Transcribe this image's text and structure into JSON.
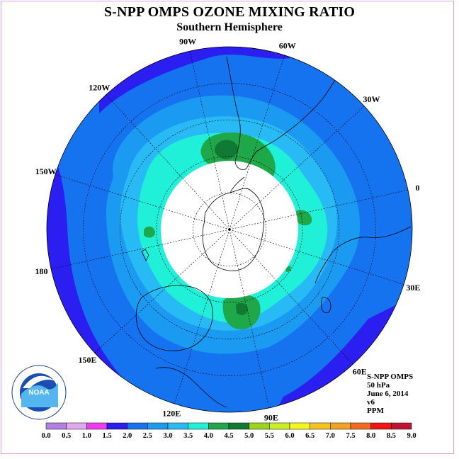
{
  "title": "S-NPP OMPS OZONE MIXING RATIO",
  "subtitle": "Southern Hemisphere",
  "logo": {
    "text": "NOAA",
    "ring_text": "NATIONAL OCEANIC AND ATMOSPHERIC ADMINISTRATION  U.S. DEPARTMENT OF COMMERCE"
  },
  "info": [
    "S-NPP OMPS",
    "50 hPa",
    "June 6, 2014",
    "v6",
    "PPM"
  ],
  "longitude_labels": [
    {
      "text": "90W",
      "deg": -90
    },
    {
      "text": "60W",
      "deg": -60
    },
    {
      "text": "30W",
      "deg": -30
    },
    {
      "text": "0",
      "deg": 0
    },
    {
      "text": "30E",
      "deg": 30
    },
    {
      "text": "60E",
      "deg": 60
    },
    {
      "text": "90E",
      "deg": 90
    },
    {
      "text": "120E",
      "deg": 120
    },
    {
      "text": "150E",
      "deg": 150
    },
    {
      "text": "180",
      "deg": 180
    },
    {
      "text": "150W",
      "deg": -150
    },
    {
      "text": "120W",
      "deg": -120
    }
  ],
  "colorbar": {
    "ticks": [
      "0.0",
      "0.5",
      "1.0",
      "1.5",
      "2.0",
      "2.5",
      "3.0",
      "3.5",
      "4.0",
      "4.5",
      "5.0",
      "5.5",
      "6.0",
      "6.5",
      "7.0",
      "7.5",
      "8.0",
      "8.5",
      "9.0"
    ],
    "colors": [
      "#b27fe5",
      "#e0a8ee",
      "#f03cf0",
      "#2a1ef0",
      "#1673f0",
      "#1a9af0",
      "#28baf5",
      "#20f0d8",
      "#1fa84a",
      "#0f7a33",
      "#9ed41c",
      "#c8f020",
      "#f5f51e",
      "#f5c31e",
      "#f5a01e",
      "#f56a1e",
      "#f01414",
      "#c01430",
      "#8c5a46"
    ]
  },
  "map_colors": {
    "ocean_edge": "#2a1ef0",
    "level_2_0": "#1673f0",
    "level_2_5": "#1a9af0",
    "level_3_0": "#28baf5",
    "level_3_5": "#20f0d8",
    "level_4_0": "#1fa84a",
    "level_4_5": "#0f7a33",
    "no_data": "#ffffff"
  }
}
